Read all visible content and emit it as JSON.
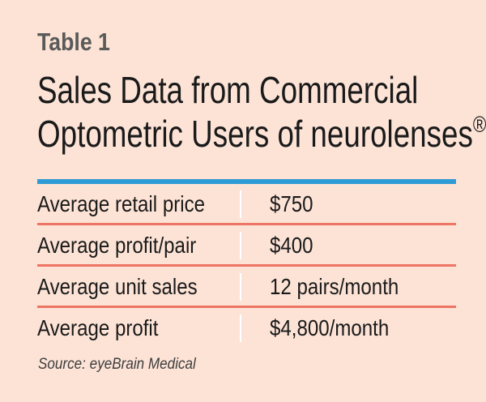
{
  "table": {
    "number_label": "Table 1",
    "title_line1": "Sales Data from Commercial",
    "title_line2": "Optometric Users of neurolenses",
    "title_mark": "®",
    "rows": [
      {
        "label": "Average retail price",
        "value": "$750"
      },
      {
        "label": "Average profit/pair",
        "value": "$400"
      },
      {
        "label": "Average unit sales",
        "value": "12 pairs/month"
      },
      {
        "label": "Average profit",
        "value": "$4,800/month"
      }
    ],
    "source": "Source: eyeBrain Medical"
  },
  "colors": {
    "background": "#fce3d6",
    "header_rule": "#2f9bd5",
    "row_rule": "#ee7464",
    "table_number": "#5a5a5a",
    "text": "#1a1a1a"
  }
}
